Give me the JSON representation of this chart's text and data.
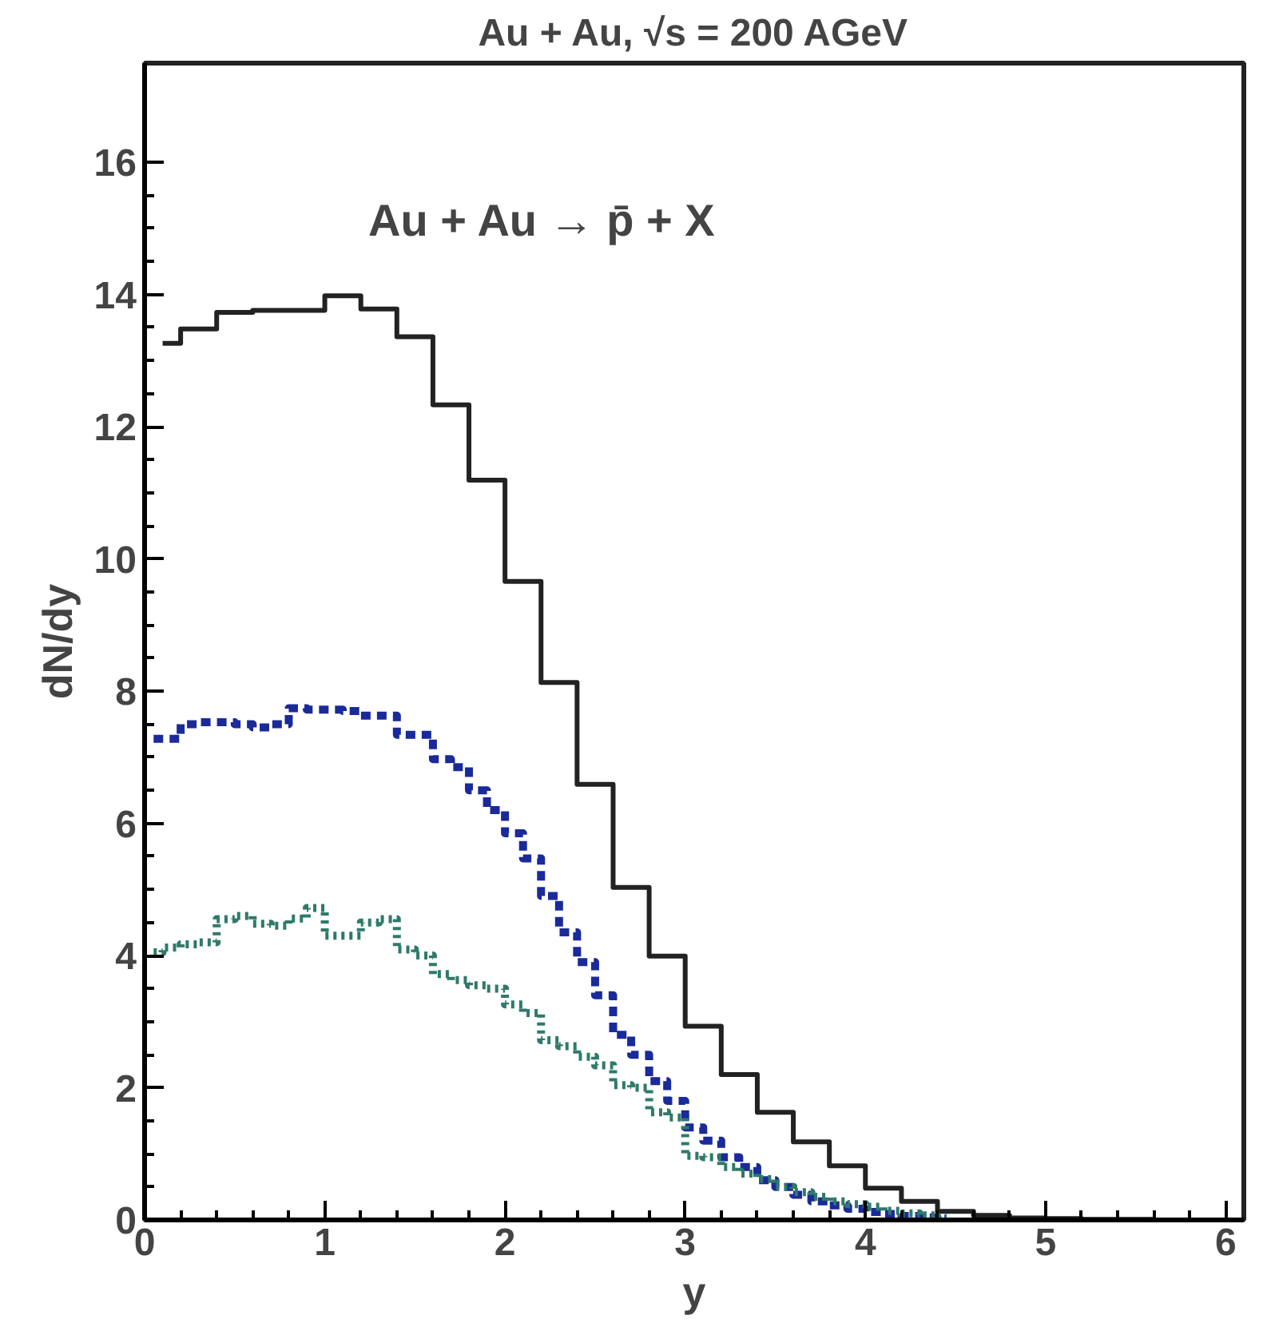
{
  "chart_data": {
    "type": "step",
    "title": "Au + Au, √s = 200 AGeV",
    "xlabel": "y",
    "ylabel": "dN/dy",
    "annotations": [
      "Au + Au → p̄ + X"
    ],
    "xlim": [
      0,
      6.1
    ],
    "ylim": [
      0,
      17.5
    ],
    "xticks": [
      0,
      1,
      2,
      3,
      4,
      5,
      6
    ],
    "yticks": [
      0,
      2,
      4,
      6,
      8,
      10,
      12,
      14,
      16
    ],
    "grid": false,
    "series": [
      {
        "color": "#222222",
        "line_style": "solid",
        "x": [
          0.1,
          0.3,
          0.5,
          0.7,
          0.9,
          1.1,
          1.3,
          1.5,
          1.7,
          1.9,
          2.1,
          2.3,
          2.5,
          2.7,
          2.9,
          3.1,
          3.3,
          3.5,
          3.7,
          3.9,
          4.1,
          4.3,
          4.5,
          4.7,
          4.9,
          5.1,
          5.3,
          5.5,
          5.7,
          5.9
        ],
        "values": [
          13.26,
          13.48,
          13.73,
          13.76,
          13.76,
          13.98,
          13.78,
          13.36,
          12.33,
          11.19,
          9.66,
          8.13,
          6.59,
          5.03,
          3.99,
          2.93,
          2.2,
          1.63,
          1.18,
          0.82,
          0.48,
          0.28,
          0.13,
          0.07,
          0.03,
          0.02,
          0.01,
          0.01,
          0.0,
          0.0
        ]
      },
      {
        "color": "#1a2a9a",
        "line_style": "dashed",
        "x": [
          0.05,
          0.15,
          0.25,
          0.35,
          0.45,
          0.55,
          0.65,
          0.75,
          0.85,
          0.95,
          1.05,
          1.15,
          1.25,
          1.35,
          1.45,
          1.55,
          1.65,
          1.75,
          1.85,
          1.95,
          2.05,
          2.15,
          2.25,
          2.35,
          2.45,
          2.55,
          2.65,
          2.75,
          2.85,
          2.95,
          3.05,
          3.15,
          3.25,
          3.35,
          3.45,
          3.55,
          3.65,
          3.75,
          3.85,
          3.95,
          4.05,
          4.15,
          4.25,
          4.35,
          4.45
        ],
        "values": [
          7.28,
          7.28,
          7.5,
          7.53,
          7.53,
          7.5,
          7.45,
          7.5,
          7.74,
          7.72,
          7.72,
          7.7,
          7.63,
          7.63,
          7.34,
          7.34,
          6.97,
          6.85,
          6.5,
          6.2,
          5.85,
          5.47,
          4.9,
          4.35,
          3.9,
          3.4,
          2.8,
          2.5,
          2.1,
          1.8,
          1.4,
          1.2,
          0.95,
          0.8,
          0.6,
          0.5,
          0.38,
          0.28,
          0.22,
          0.17,
          0.12,
          0.09,
          0.06,
          0.04,
          0.02
        ]
      },
      {
        "color": "#2f7a6a",
        "line_style": "dotted",
        "x": [
          0.05,
          0.15,
          0.25,
          0.35,
          0.45,
          0.55,
          0.65,
          0.75,
          0.85,
          0.95,
          1.05,
          1.15,
          1.25,
          1.35,
          1.45,
          1.55,
          1.65,
          1.75,
          1.85,
          1.95,
          2.05,
          2.15,
          2.25,
          2.35,
          2.45,
          2.55,
          2.65,
          2.75,
          2.85,
          2.95,
          3.05,
          3.15,
          3.25,
          3.35,
          3.45,
          3.55,
          3.65,
          3.75,
          3.85,
          3.95,
          4.05,
          4.15,
          4.25,
          4.35,
          4.45
        ],
        "values": [
          4.05,
          4.12,
          4.17,
          4.2,
          4.55,
          4.6,
          4.48,
          4.45,
          4.56,
          4.72,
          4.3,
          4.3,
          4.5,
          4.55,
          4.09,
          4.0,
          3.72,
          3.63,
          3.55,
          3.5,
          3.26,
          3.13,
          2.72,
          2.63,
          2.47,
          2.34,
          2.04,
          2.0,
          1.63,
          1.55,
          0.97,
          0.95,
          0.8,
          0.7,
          0.62,
          0.5,
          0.42,
          0.35,
          0.28,
          0.24,
          0.2,
          0.14,
          0.1,
          0.07,
          0.04
        ]
      }
    ]
  }
}
